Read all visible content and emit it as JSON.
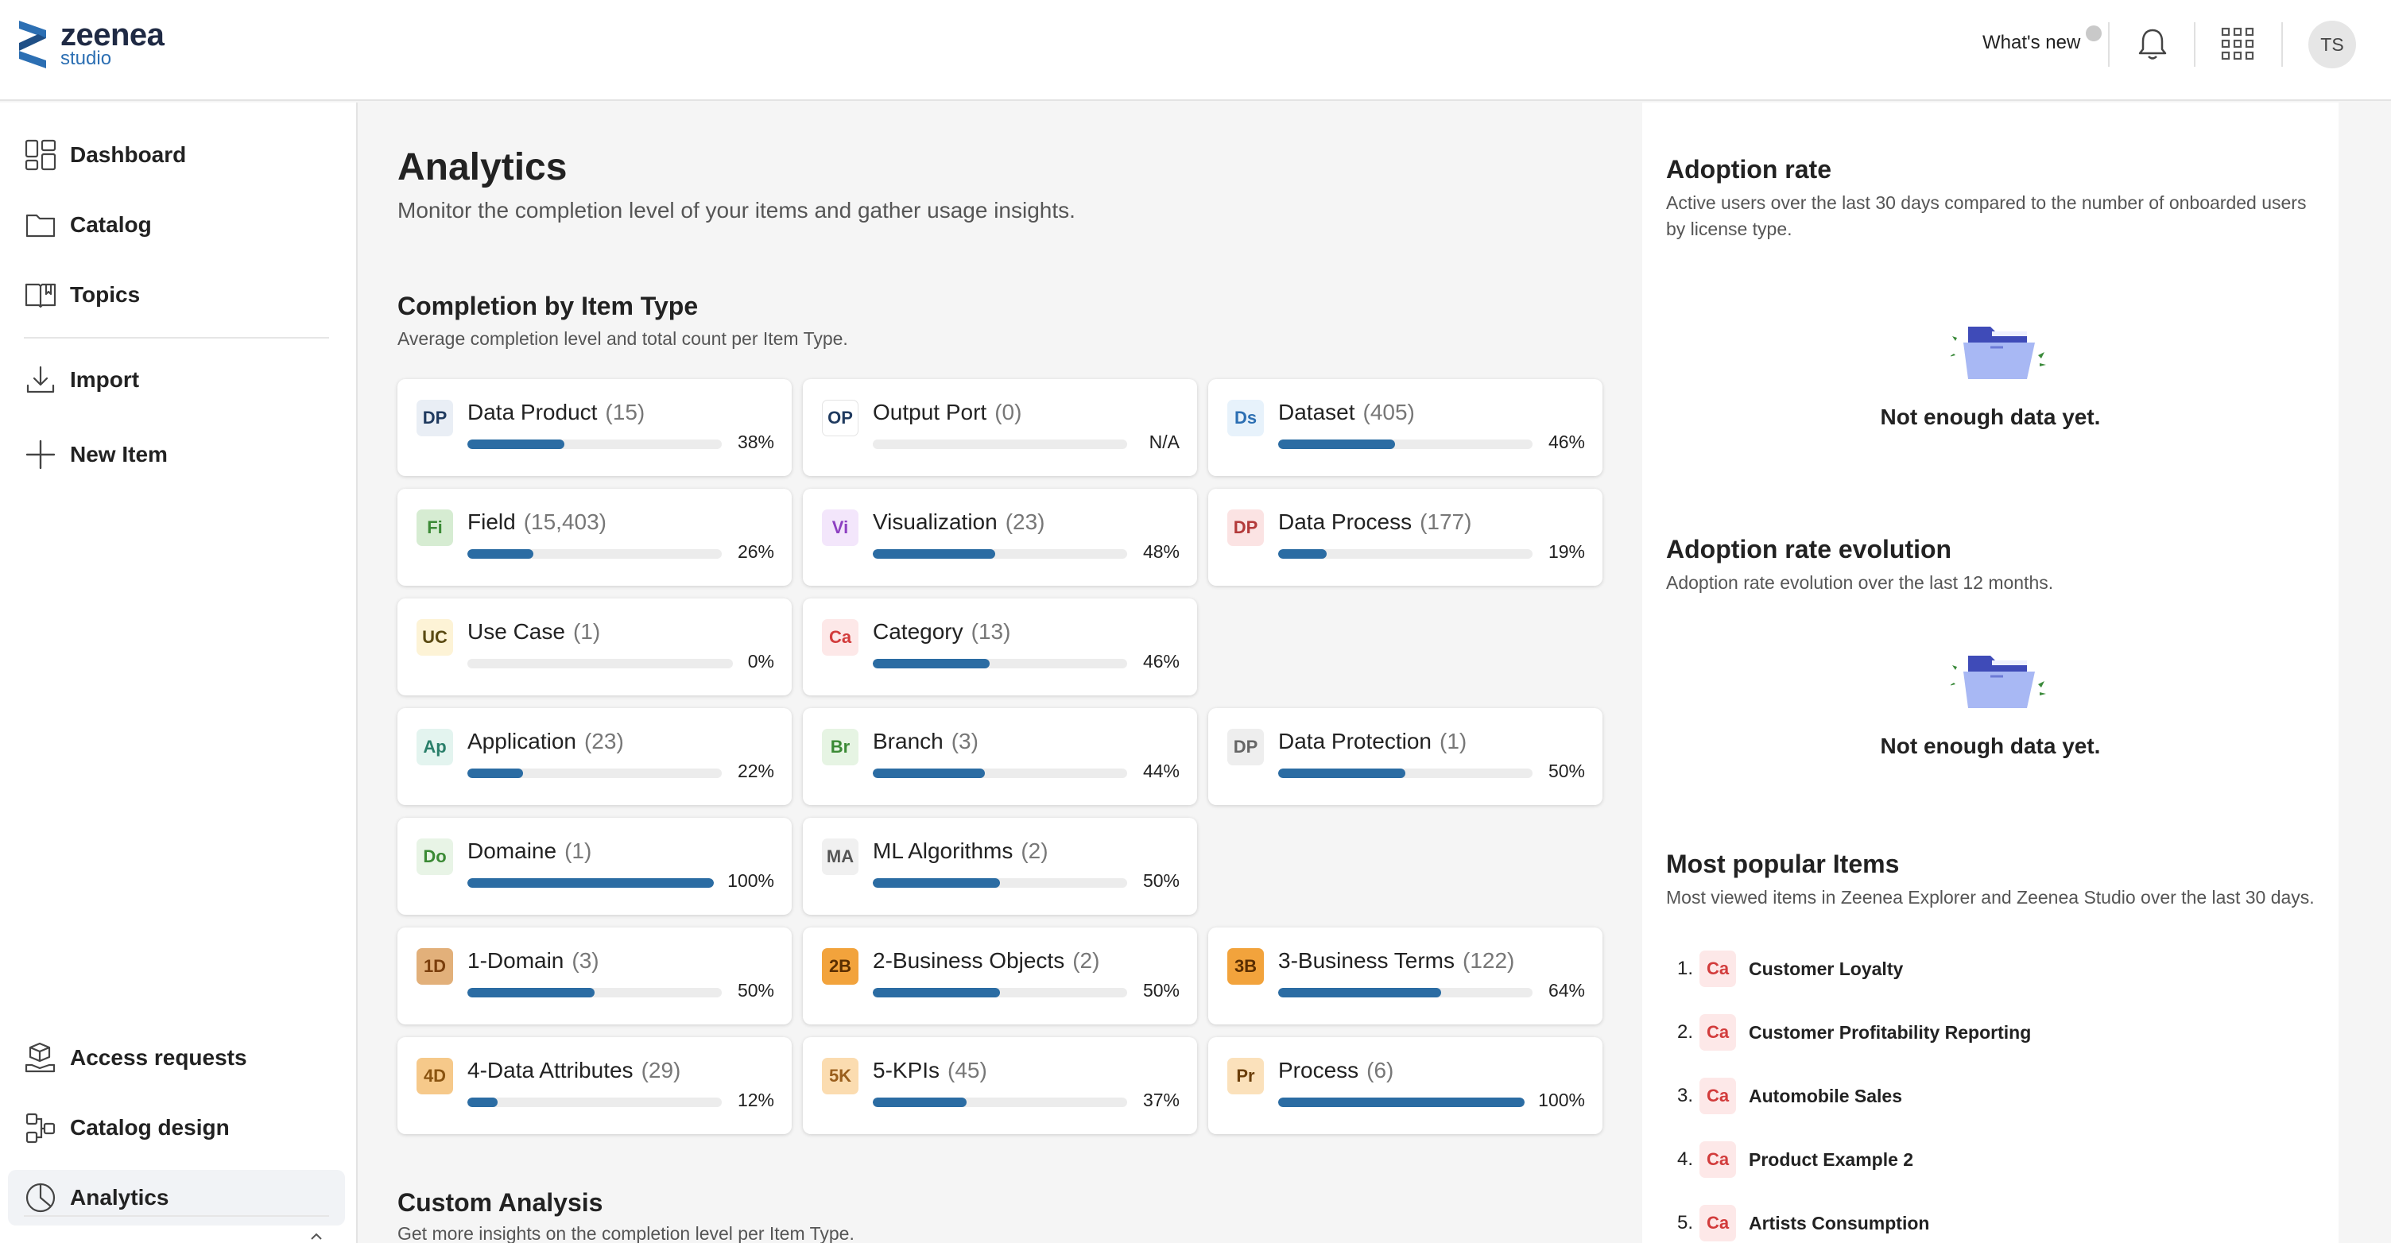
{
  "header": {
    "logo_name": "zeenea",
    "logo_sub": "studio",
    "whats_new": "What's new",
    "avatar_initials": "TS"
  },
  "sidebar": {
    "top_items": [
      {
        "label": "Dashboard",
        "icon": "dashboard-icon"
      },
      {
        "label": "Catalog",
        "icon": "folder-icon"
      },
      {
        "label": "Topics",
        "icon": "topics-book-icon"
      },
      {
        "label": "Import",
        "icon": "import-icon"
      },
      {
        "label": "New Item",
        "icon": "plus-icon"
      }
    ],
    "bottom_items": [
      {
        "label": "Access requests",
        "icon": "access-requests-icon"
      },
      {
        "label": "Catalog design",
        "icon": "catalog-design-icon"
      },
      {
        "label": "Analytics",
        "icon": "analytics-pie-icon",
        "active": true
      }
    ]
  },
  "main": {
    "title": "Analytics",
    "subtitle": "Monitor the completion level of your items and gather usage insights.",
    "completion": {
      "title": "Completion by Item Type",
      "subtitle": "Average completion level and total count per Item Type.",
      "items": [
        {
          "badge": "DP",
          "name": "Data Product",
          "count": "(15)",
          "pct_label": "38%",
          "pct": 38,
          "badge_bg": "#e9eef5",
          "badge_fg": "#1f3a5f"
        },
        {
          "badge": "OP",
          "name": "Output Port",
          "count": "(0)",
          "pct_label": "N/A",
          "pct": 0,
          "badge_bg": "#ffffff",
          "badge_fg": "#1f3a5f"
        },
        {
          "badge": "Ds",
          "name": "Dataset",
          "count": "(405)",
          "pct_label": "46%",
          "pct": 46,
          "badge_bg": "#e7f2fb",
          "badge_fg": "#2c6fb3"
        },
        {
          "badge": "Fi",
          "name": "Field",
          "count": "(15,403)",
          "pct_label": "26%",
          "pct": 26,
          "badge_bg": "#d6ecd2",
          "badge_fg": "#3b8a35"
        },
        {
          "badge": "Vi",
          "name": "Visualization",
          "count": "(23)",
          "pct_label": "48%",
          "pct": 48,
          "badge_bg": "#f3e6fb",
          "badge_fg": "#8d3fc1"
        },
        {
          "badge": "DP",
          "name": "Data Process",
          "count": "(177)",
          "pct_label": "19%",
          "pct": 19,
          "badge_bg": "#fbe3e3",
          "badge_fg": "#b33a3a"
        },
        {
          "badge": "UC",
          "name": "Use Case",
          "count": "(1)",
          "pct_label": "0%",
          "pct": 0,
          "badge_bg": "#fdf3d6",
          "badge_fg": "#5a4a12"
        },
        {
          "badge": "Ca",
          "name": "Category",
          "count": "(13)",
          "pct_label": "46%",
          "pct": 46,
          "badge_bg": "#fde8e8",
          "badge_fg": "#d23c3c"
        },
        {
          "badge": "Ap",
          "name": "Application",
          "count": "(23)",
          "pct_label": "22%",
          "pct": 22,
          "badge_bg": "#e3f4ef",
          "badge_fg": "#2a7f6a"
        },
        {
          "badge": "Br",
          "name": "Branch",
          "count": "(3)",
          "pct_label": "44%",
          "pct": 44,
          "badge_bg": "#e6f4e3",
          "badge_fg": "#3b8a35"
        },
        {
          "badge": "DP",
          "name": "Data Protection",
          "count": "(1)",
          "pct_label": "50%",
          "pct": 50,
          "badge_bg": "#eeeeee",
          "badge_fg": "#666666"
        },
        {
          "badge": "Do",
          "name": "Domaine",
          "count": "(1)",
          "pct_label": "100%",
          "pct": 100,
          "badge_bg": "#e8f4e6",
          "badge_fg": "#3b8a35"
        },
        {
          "badge": "MA",
          "name": "ML Algorithms",
          "count": "(2)",
          "pct_label": "50%",
          "pct": 50,
          "badge_bg": "#f0f0f0",
          "badge_fg": "#555555"
        },
        {
          "badge": "1D",
          "name": "1-Domain",
          "count": "(3)",
          "pct_label": "50%",
          "pct": 50,
          "badge_bg": "#e2b07a",
          "badge_fg": "#7a3e0c"
        },
        {
          "badge": "2B",
          "name": "2-Business Objects",
          "count": "(2)",
          "pct_label": "50%",
          "pct": 50,
          "badge_bg": "#f2a33c",
          "badge_fg": "#5a2e00"
        },
        {
          "badge": "3B",
          "name": "3-Business Terms",
          "count": "(122)",
          "pct_label": "64%",
          "pct": 64,
          "badge_bg": "#f2a33c",
          "badge_fg": "#5a2e00"
        },
        {
          "badge": "4D",
          "name": "4-Data Attributes",
          "count": "(29)",
          "pct_label": "12%",
          "pct": 12,
          "badge_bg": "#f6c98a",
          "badge_fg": "#8a5410"
        },
        {
          "badge": "5K",
          "name": "5-KPIs",
          "count": "(45)",
          "pct_label": "37%",
          "pct": 37,
          "badge_bg": "#fbdcb0",
          "badge_fg": "#9a5e1c"
        },
        {
          "badge": "Pr",
          "name": "Process",
          "count": "(6)",
          "pct_label": "100%",
          "pct": 100,
          "badge_bg": "#fbe1bb",
          "badge_fg": "#6b3e0a"
        }
      ]
    },
    "custom": {
      "title": "Custom Analysis",
      "subtitle": "Get more insights on the completion level per Item Type."
    }
  },
  "right": {
    "adoption": {
      "title": "Adoption rate",
      "subtitle": "Active users over the last 30 days compared to the number of onboarded users by license type.",
      "empty": "Not enough data yet."
    },
    "evolution": {
      "title": "Adoption rate evolution",
      "subtitle": "Adoption rate evolution over the last 12 months.",
      "empty": "Not enough data yet."
    },
    "popular": {
      "title": "Most popular Items",
      "subtitle": "Most viewed items in Zeenea Explorer and Zeenea Studio over the last 30 days.",
      "items": [
        {
          "rank": "1.",
          "badge": "Ca",
          "name": "Customer Loyalty"
        },
        {
          "rank": "2.",
          "badge": "Ca",
          "name": "Customer Profitability Reporting"
        },
        {
          "rank": "3.",
          "badge": "Ca",
          "name": "Automobile Sales"
        },
        {
          "rank": "4.",
          "badge": "Ca",
          "name": "Product Example 2"
        },
        {
          "rank": "5.",
          "badge": "Ca",
          "name": "Artists Consumption"
        }
      ]
    }
  },
  "colors": {
    "accent": "#2b6ca3",
    "brand_dark": "#1f2a44",
    "brand_blue": "#2c6fb3"
  }
}
